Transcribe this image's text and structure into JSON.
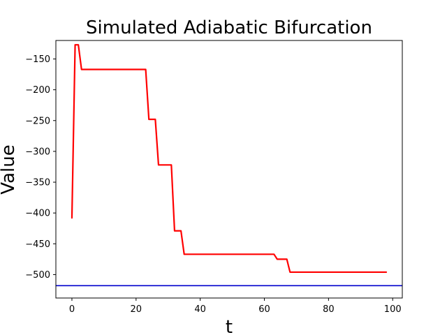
{
  "chart_data": {
    "type": "line",
    "title": "Simulated Adiabatic Bifurcation",
    "xlabel": "t",
    "ylabel": "Value",
    "xlim": [
      -5,
      103
    ],
    "ylim": [
      -538,
      -120
    ],
    "x_ticks": [
      0,
      20,
      40,
      60,
      80,
      100
    ],
    "y_ticks": [
      -150,
      -200,
      -250,
      -300,
      -350,
      -400,
      -450,
      -500
    ],
    "grid": false,
    "series": [
      {
        "color": "#ff0000",
        "x": [
          0,
          1,
          2,
          3,
          23,
          24,
          25,
          26,
          27,
          28,
          31,
          32,
          33,
          34,
          35,
          63,
          64,
          66,
          67,
          68,
          98
        ],
        "y": [
          -408,
          -127,
          -127,
          -167,
          -167,
          -248,
          -248,
          -248,
          -322,
          -322,
          -322,
          -429,
          -429,
          -429,
          -467,
          -467,
          -475,
          -475,
          -475,
          -496,
          -496
        ]
      }
    ],
    "hlines": [
      {
        "y": -518,
        "color": "#0000cc"
      }
    ]
  }
}
